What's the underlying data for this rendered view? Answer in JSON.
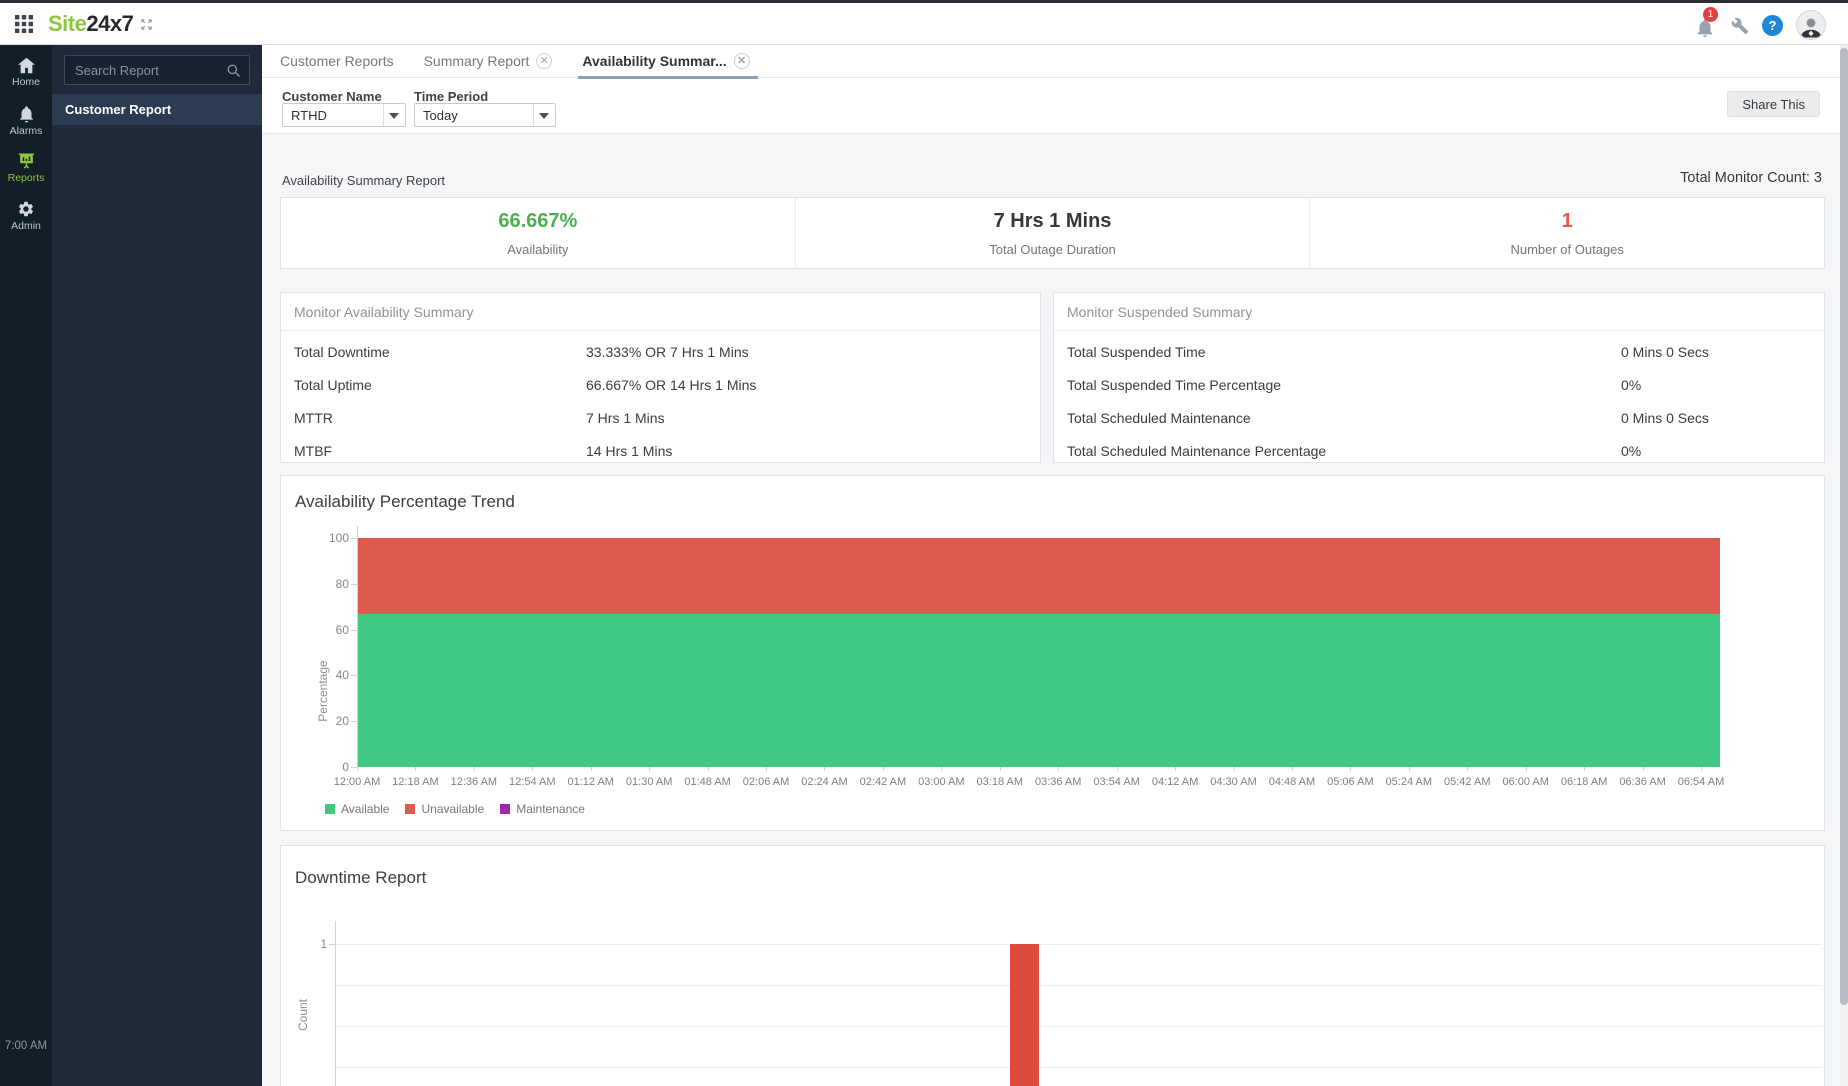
{
  "topbar": {
    "logo_prefix": "Site",
    "logo_suffix": "24x7",
    "notification_badge": "1",
    "help_glyph": "?"
  },
  "sidebar": {
    "items": [
      {
        "label": "Home"
      },
      {
        "label": "Alarms"
      },
      {
        "label": "Reports"
      },
      {
        "label": "Admin"
      }
    ],
    "bottom_time": "7:00 AM"
  },
  "panel": {
    "search_placeholder": "Search Report",
    "selected_item": "Customer Report"
  },
  "tabs": [
    {
      "label": "Customer Reports",
      "closable": false,
      "active": false
    },
    {
      "label": "Summary Report",
      "closable": true,
      "active": false
    },
    {
      "label": "Availability Summar...",
      "closable": true,
      "active": true
    }
  ],
  "filters": {
    "customer_name_label": "Customer Name",
    "customer_name_value": "RTHD",
    "time_period_label": "Time Period",
    "time_period_value": "Today"
  },
  "actions": {
    "share_button": "Share This"
  },
  "report": {
    "section_title": "Availability Summary Report",
    "total_monitor_count": "Total Monitor Count: 3",
    "stats": [
      {
        "value": "66.667%",
        "label": "Availability",
        "color": "#4caf50"
      },
      {
        "value": "7 Hrs 1 Mins",
        "label": "Total Outage Duration",
        "color": "#33383d"
      },
      {
        "value": "1",
        "label": "Number of Outages",
        "color": "#e9594c"
      }
    ],
    "availability_summary": {
      "title": "Monitor Availability Summary",
      "rows": [
        {
          "label": "Total Downtime",
          "value": "33.333% OR 7 Hrs 1 Mins"
        },
        {
          "label": "Total Uptime",
          "value": "66.667% OR 14 Hrs 1 Mins"
        },
        {
          "label": "MTTR",
          "value": "7 Hrs 1 Mins"
        },
        {
          "label": "MTBF",
          "value": "14 Hrs 1 Mins"
        }
      ]
    },
    "suspended_summary": {
      "title": "Monitor Suspended Summary",
      "rows": [
        {
          "label": "Total Suspended Time",
          "value": "0 Mins 0 Secs"
        },
        {
          "label": "Total Suspended Time Percentage",
          "value": "0%"
        },
        {
          "label": "Total Scheduled Maintenance",
          "value": "0 Mins 0 Secs"
        },
        {
          "label": "Total Scheduled Maintenance Percentage",
          "value": "0%"
        }
      ]
    }
  },
  "colors": {
    "brand_green": "#8dc63f",
    "available_green": "#41c882",
    "unavailable_red": "#dd5a4f",
    "maintenance_purple": "#9c27b0",
    "badge_red": "#e53e3e",
    "help_blue": "#2086d6"
  },
  "chart_data": [
    {
      "type": "area",
      "title": "Availability Percentage Trend",
      "ylabel": "Percentage",
      "ylim": [
        0,
        100
      ],
      "yticks": [
        0,
        20,
        40,
        60,
        80,
        100
      ],
      "x": [
        "12:00 AM",
        "12:18 AM",
        "12:36 AM",
        "12:54 AM",
        "01:12 AM",
        "01:30 AM",
        "01:48 AM",
        "02:06 AM",
        "02:24 AM",
        "02:42 AM",
        "03:00 AM",
        "03:18 AM",
        "03:36 AM",
        "03:54 AM",
        "04:12 AM",
        "04:30 AM",
        "04:48 AM",
        "05:06 AM",
        "05:24 AM",
        "05:42 AM",
        "06:00 AM",
        "06:18 AM",
        "06:36 AM",
        "06:54 AM"
      ],
      "stacked": true,
      "series": [
        {
          "name": "Available",
          "color": "#41c882",
          "constant_value": 66.667
        },
        {
          "name": "Unavailable",
          "color": "#dd5a4f",
          "constant_value": 33.333
        },
        {
          "name": "Maintenance",
          "color": "#9c27b0",
          "constant_value": 0
        }
      ],
      "legend_position": "bottom-left",
      "grid": false
    },
    {
      "type": "bar",
      "title": "Downtime Report",
      "ylabel": "Count",
      "visible_yticks": [
        1
      ],
      "bars": [
        {
          "value": 1,
          "x_fraction": 0.464
        }
      ],
      "bar_color": "#e04b3f",
      "grid": true,
      "clipped_bottom": true
    }
  ]
}
